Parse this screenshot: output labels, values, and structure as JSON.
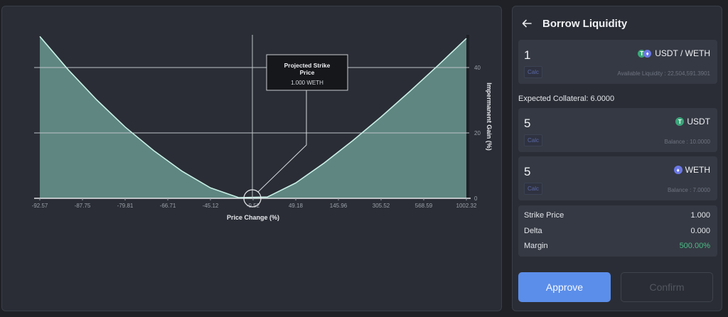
{
  "chart_data": {
    "type": "area",
    "x_ticks": [
      "-92.57",
      "-87.75",
      "-79.81",
      "-66.71",
      "-45.12",
      "-9.52",
      "49.18",
      "145.96",
      "305.52",
      "568.59",
      "1002.32"
    ],
    "y_ticks": [
      0,
      20,
      40
    ],
    "xlabel": "Price Change (%)",
    "ylabel": "Impermanent Gain (%)",
    "ylim": [
      0,
      50
    ],
    "series": [
      {
        "name": "",
        "values": [
          49.5,
          39.3,
          30.1,
          21.8,
          14.6,
          8.3,
          3.2,
          0.2,
          0.4,
          4.7,
          10.8,
          17.6,
          24.9,
          32.6,
          40.6,
          48.9
        ]
      }
    ],
    "annotation": {
      "title": "Projected Strike Price",
      "value": "1.000 WETH"
    },
    "colors": {
      "fill": "#5f8681",
      "line": "#c8efe6",
      "grid": "#bfc3c9"
    }
  },
  "panel": {
    "title": "Borrow Liquidity",
    "borrow": {
      "amount": "1",
      "token": "USDT / WETH",
      "calc": "Calc",
      "available": "Available Liquidity : 22,504,591.3901"
    },
    "collateral": "Expected Collateral: 6.0000",
    "usdt": {
      "amount": "5",
      "token": "USDT",
      "calc": "Calc",
      "balance": "Balance : 10.0000"
    },
    "weth": {
      "amount": "5",
      "token": "WETH",
      "calc": "Calc",
      "balance": "Balance : 7.0000"
    },
    "stats": {
      "strike_label": "Strike Price",
      "strike_value": "1.000",
      "delta_label": "Delta",
      "delta_value": "0.000",
      "margin_label": "Margin",
      "margin_value": "500.00%"
    },
    "approve": "Approve",
    "confirm": "Confirm"
  }
}
